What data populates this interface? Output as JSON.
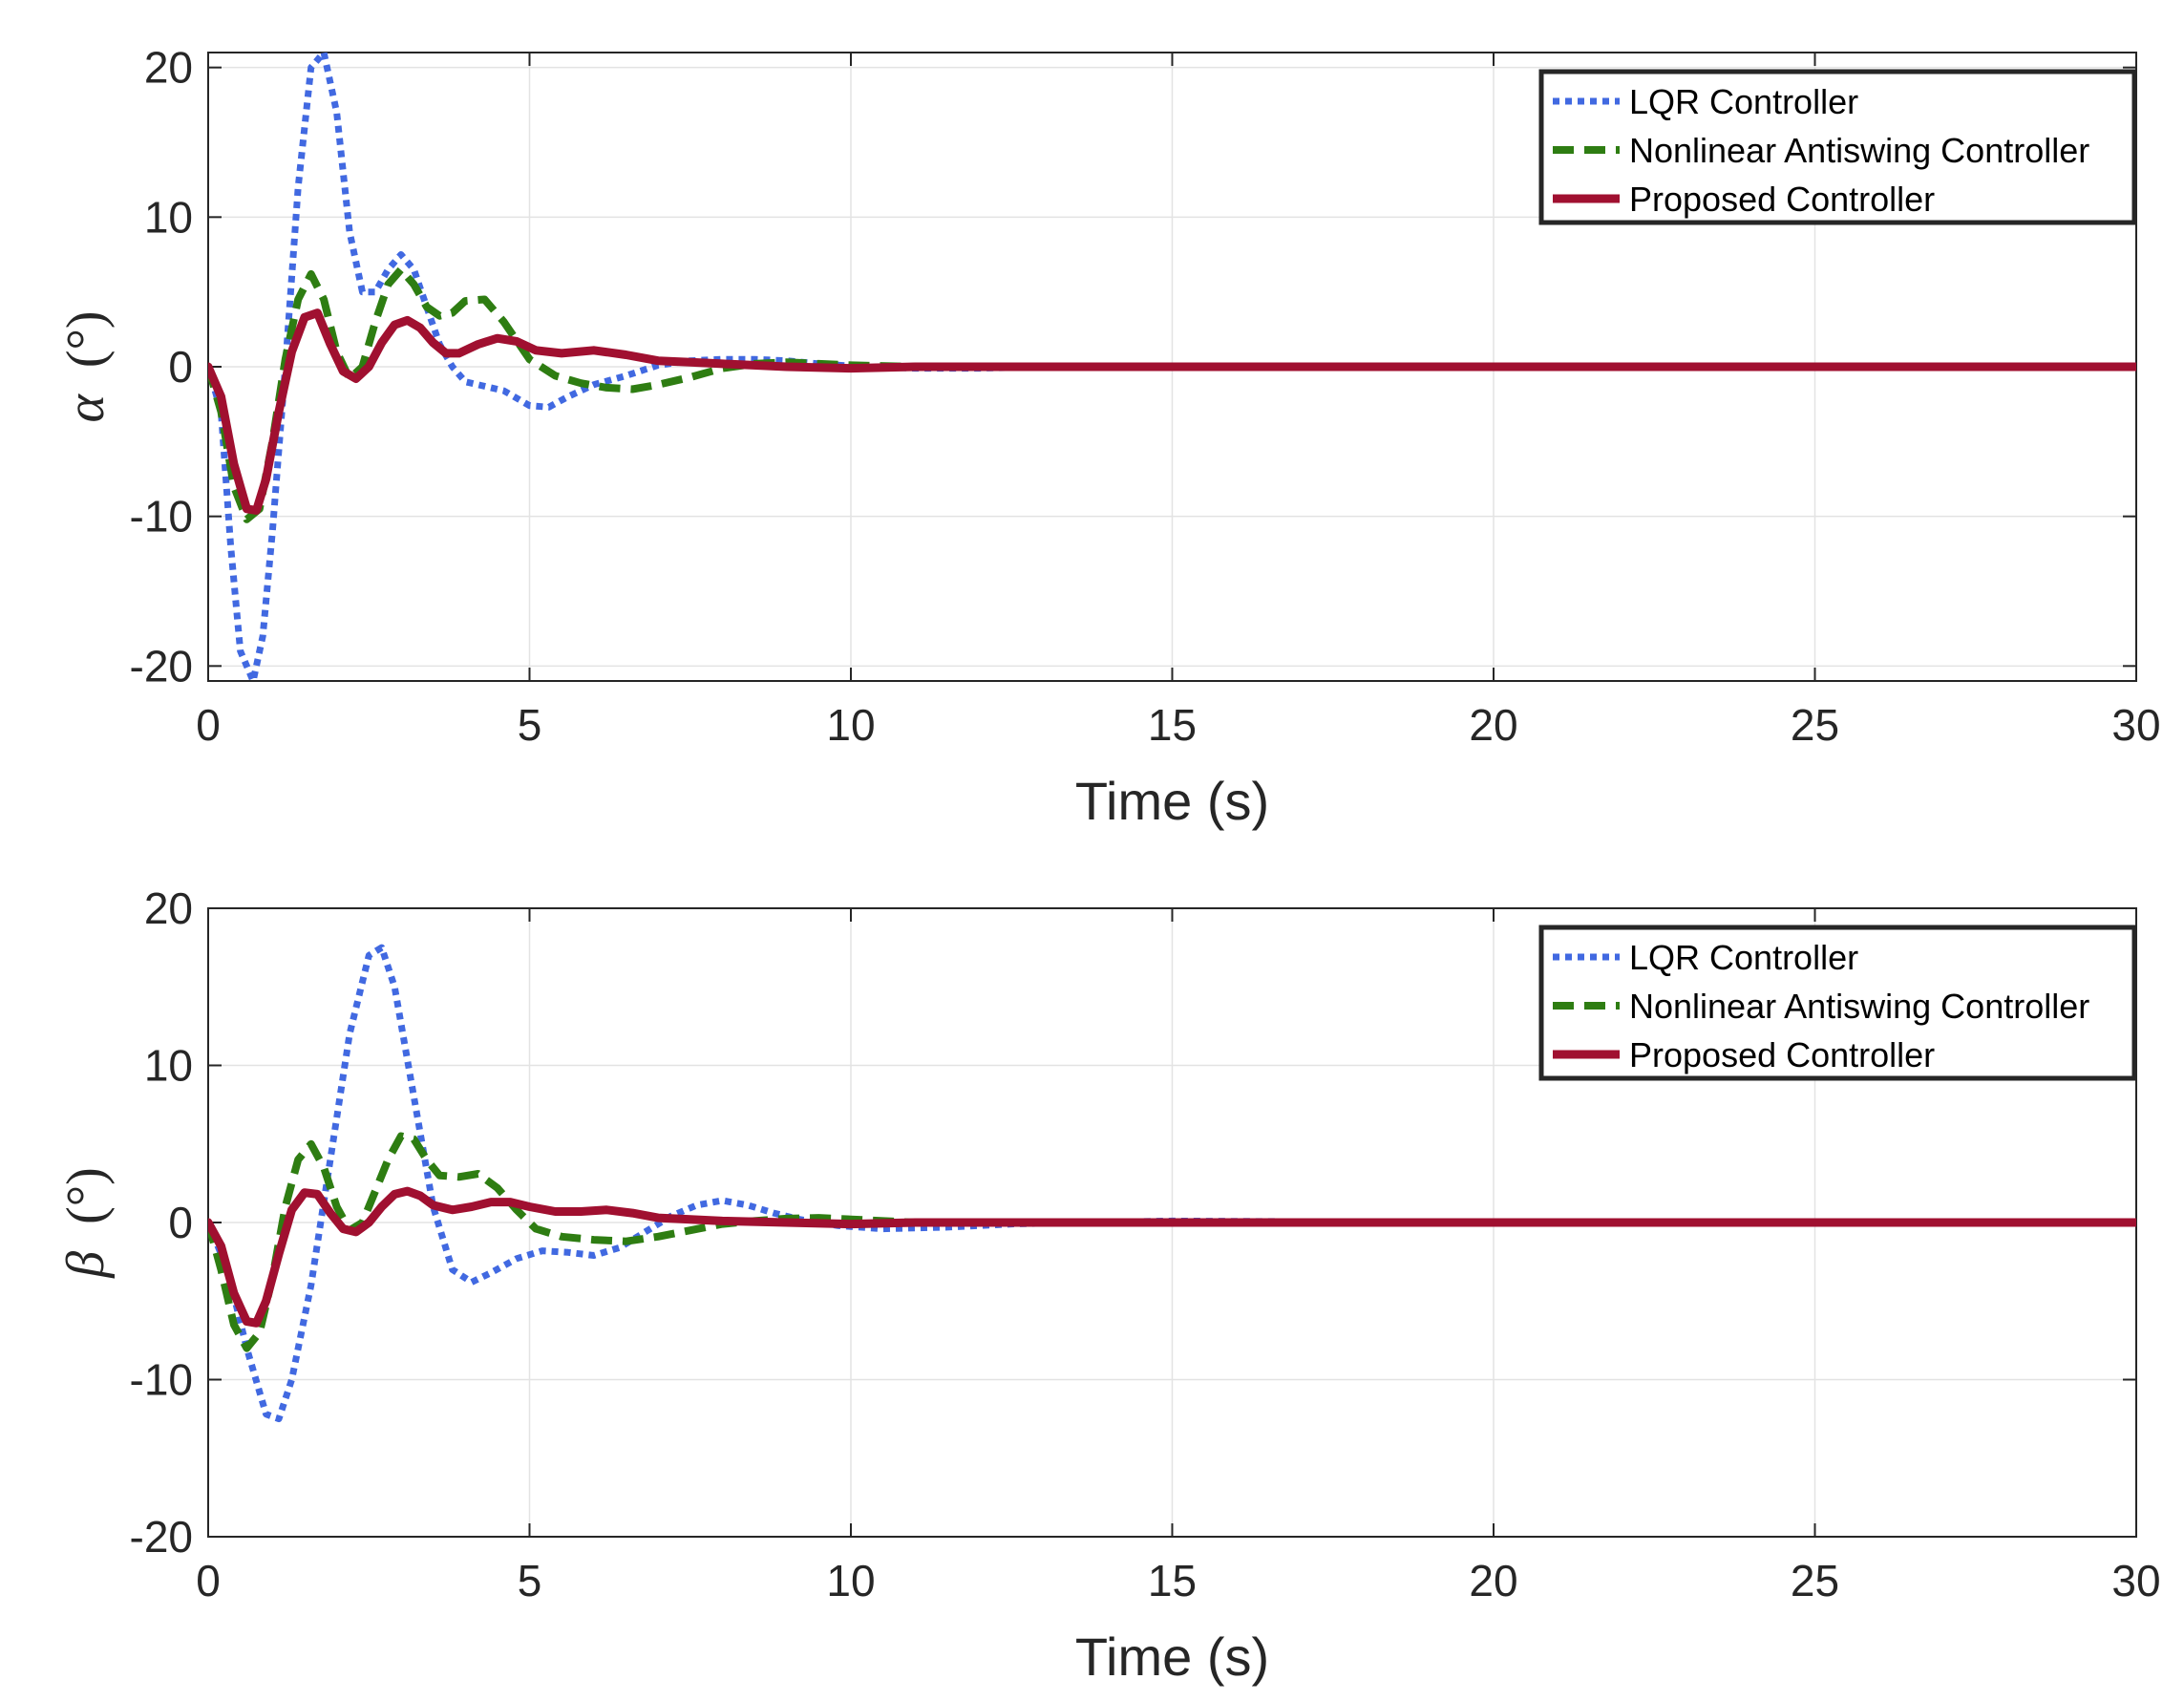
{
  "chart_data": [
    {
      "type": "line",
      "id": "alpha",
      "xlabel": "Time (s)",
      "ylabel_symbol": "α",
      "ylabel_unit": "(°)",
      "xlim": [
        0,
        30
      ],
      "ylim": [
        -21,
        21
      ],
      "xticks": [
        0,
        5,
        10,
        15,
        20,
        25,
        30
      ],
      "yticks": [
        -20,
        -10,
        0,
        10,
        20
      ],
      "grid": true,
      "legend_position": "top-right",
      "series": [
        {
          "name": "LQR Controller",
          "color": "#4169E1",
          "style": "dotted",
          "x": [
            0,
            0.2,
            0.35,
            0.5,
            0.7,
            0.85,
            1.0,
            1.2,
            1.4,
            1.6,
            1.8,
            2.0,
            2.2,
            2.4,
            2.6,
            2.8,
            3.0,
            3.2,
            3.4,
            3.6,
            3.8,
            4.0,
            4.3,
            4.6,
            5.0,
            5.3,
            5.6,
            6.0,
            6.5,
            7.0,
            7.5,
            8.0,
            8.5,
            9.0,
            9.5,
            10.0,
            11.0,
            12.0,
            13.0,
            14.0,
            15.0,
            16.0,
            18.0,
            20.0,
            25.0,
            30.0
          ],
          "y": [
            0,
            -3,
            -12,
            -19,
            -21,
            -18,
            -11,
            0,
            12,
            20,
            21,
            17,
            9,
            5,
            5,
            6.5,
            7.5,
            6.5,
            4,
            1.5,
            0,
            -1,
            -1.3,
            -1.6,
            -2.6,
            -2.7,
            -2,
            -1.2,
            -0.6,
            0.1,
            0.4,
            0.5,
            0.5,
            0.4,
            0.2,
            0.05,
            -0.1,
            -0.1,
            0,
            0,
            0.05,
            0,
            0,
            0,
            0,
            0
          ]
        },
        {
          "name": "Nonlinear Antiswing Controller",
          "color": "#2E7D12",
          "style": "dashed",
          "x": [
            0,
            0.2,
            0.4,
            0.6,
            0.8,
            1.0,
            1.2,
            1.4,
            1.6,
            1.8,
            2.0,
            2.2,
            2.4,
            2.6,
            2.8,
            3.0,
            3.2,
            3.4,
            3.6,
            3.8,
            4.0,
            4.3,
            4.6,
            5.0,
            5.4,
            5.8,
            6.2,
            6.6,
            7.0,
            7.5,
            8.0,
            8.5,
            9.0,
            9.5,
            10.0,
            11.0,
            12.0,
            13.0,
            15.0,
            20.0,
            30.0
          ],
          "y": [
            0,
            -3,
            -8,
            -10.2,
            -9.5,
            -5,
            0.5,
            4.5,
            6.2,
            4.5,
            1,
            -0.8,
            0,
            3,
            5.5,
            6.5,
            5.5,
            4,
            3.4,
            3.6,
            4.4,
            4.5,
            3,
            0.5,
            -0.6,
            -1.1,
            -1.4,
            -1.5,
            -1.2,
            -0.7,
            -0.1,
            0.2,
            0.3,
            0.2,
            0.1,
            0,
            0,
            0,
            0,
            0,
            0
          ]
        },
        {
          "name": "Proposed Controller",
          "color": "#A01030",
          "style": "solid",
          "x": [
            0,
            0.2,
            0.4,
            0.6,
            0.75,
            0.9,
            1.1,
            1.3,
            1.5,
            1.7,
            1.9,
            2.1,
            2.3,
            2.5,
            2.7,
            2.9,
            3.1,
            3.3,
            3.5,
            3.7,
            3.9,
            4.2,
            4.5,
            4.8,
            5.1,
            5.5,
            6.0,
            6.5,
            7.0,
            7.5,
            8.0,
            9.0,
            10.0,
            11.0,
            12.0,
            15.0,
            20.0,
            30.0
          ],
          "y": [
            0,
            -2,
            -6.5,
            -9.5,
            -9.6,
            -7.5,
            -3,
            1,
            3.3,
            3.6,
            1.5,
            -0.3,
            -0.8,
            0,
            1.6,
            2.8,
            3.1,
            2.6,
            1.6,
            0.9,
            0.9,
            1.5,
            1.9,
            1.7,
            1.1,
            0.9,
            1.1,
            0.8,
            0.4,
            0.3,
            0.2,
            0,
            -0.1,
            0,
            0,
            0,
            0,
            0
          ]
        }
      ]
    },
    {
      "type": "line",
      "id": "beta",
      "xlabel": "Time (s)",
      "ylabel_symbol": "β",
      "ylabel_unit": "(°)",
      "xlim": [
        0,
        30
      ],
      "ylim": [
        -20,
        20
      ],
      "xticks": [
        0,
        5,
        10,
        15,
        20,
        25,
        30
      ],
      "yticks": [
        -20,
        -10,
        0,
        10,
        20
      ],
      "grid": true,
      "legend_position": "top-right",
      "series": [
        {
          "name": "LQR Controller",
          "color": "#4169E1",
          "style": "dotted",
          "x": [
            0,
            0.3,
            0.6,
            0.9,
            1.1,
            1.3,
            1.6,
            1.9,
            2.2,
            2.5,
            2.7,
            2.9,
            3.2,
            3.5,
            3.8,
            4.1,
            4.4,
            4.8,
            5.2,
            5.6,
            6.0,
            6.4,
            6.8,
            7.2,
            7.6,
            8.0,
            8.4,
            8.8,
            9.2,
            9.8,
            10.5,
            11.5,
            12.5,
            13.5,
            15.0,
            20.0,
            30.0
          ],
          "y": [
            0,
            -3,
            -8,
            -12.2,
            -12.5,
            -10,
            -4,
            4,
            12,
            17,
            17.5,
            15,
            8,
            1,
            -3,
            -3.8,
            -3.2,
            -2.3,
            -1.8,
            -1.9,
            -2.1,
            -1.6,
            -0.6,
            0.4,
            1.1,
            1.4,
            1.1,
            0.6,
            0.2,
            -0.2,
            -0.4,
            -0.3,
            -0.1,
            0,
            0.1,
            0,
            0
          ]
        },
        {
          "name": "Nonlinear Antiswing Controller",
          "color": "#2E7D12",
          "style": "dashed",
          "x": [
            0,
            0.2,
            0.4,
            0.6,
            0.8,
            1.0,
            1.2,
            1.4,
            1.6,
            1.8,
            2.0,
            2.2,
            2.4,
            2.6,
            2.8,
            3.0,
            3.2,
            3.4,
            3.6,
            3.9,
            4.2,
            4.5,
            4.8,
            5.1,
            5.5,
            6.0,
            6.5,
            7.0,
            7.5,
            8.0,
            8.5,
            9.0,
            9.5,
            10.0,
            11.0,
            12.0,
            15.0,
            20.0,
            30.0
          ],
          "y": [
            0,
            -3,
            -6.5,
            -8,
            -7,
            -3.5,
            1,
            4,
            5,
            3.5,
            1,
            -0.5,
            0,
            2,
            4,
            5.5,
            5.3,
            4,
            3,
            2.9,
            3.1,
            2.2,
            0.8,
            -0.4,
            -0.9,
            -1.1,
            -1.2,
            -0.9,
            -0.5,
            -0.1,
            0.1,
            0.25,
            0.3,
            0.2,
            0,
            0,
            0,
            0,
            0
          ]
        },
        {
          "name": "Proposed Controller",
          "color": "#A01030",
          "style": "solid",
          "x": [
            0,
            0.2,
            0.4,
            0.6,
            0.75,
            0.9,
            1.1,
            1.3,
            1.5,
            1.7,
            1.9,
            2.1,
            2.3,
            2.5,
            2.7,
            2.9,
            3.1,
            3.3,
            3.5,
            3.8,
            4.1,
            4.4,
            4.7,
            5.0,
            5.4,
            5.8,
            6.2,
            6.6,
            7.0,
            7.5,
            8.0,
            9.0,
            10.0,
            11.0,
            12.0,
            15.0,
            20.0,
            30.0
          ],
          "y": [
            0,
            -1.5,
            -4.5,
            -6.3,
            -6.4,
            -5,
            -2,
            0.8,
            1.9,
            1.8,
            0.6,
            -0.4,
            -0.6,
            0,
            1.0,
            1.8,
            2.0,
            1.7,
            1.1,
            0.8,
            1.0,
            1.3,
            1.3,
            1.0,
            0.7,
            0.7,
            0.8,
            0.6,
            0.3,
            0.2,
            0.1,
            0,
            -0.1,
            0,
            0,
            0,
            0,
            0
          ]
        }
      ]
    }
  ]
}
